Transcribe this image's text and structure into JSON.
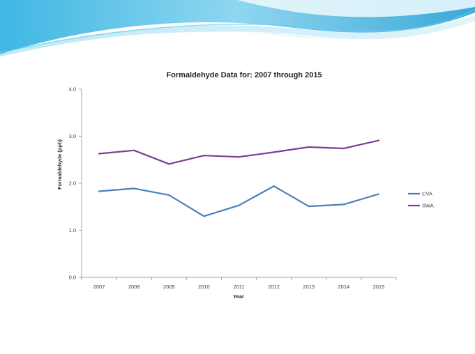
{
  "chart_data": {
    "type": "line",
    "title": "Formaldehyde Data for: 2007 through 2015",
    "xlabel": "Year",
    "ylabel": "Formaldehyde (ppb)",
    "categories": [
      "2007",
      "2008",
      "2009",
      "2010",
      "2011",
      "2012",
      "2013",
      "2014",
      "2015"
    ],
    "ylim": [
      0,
      4
    ],
    "yticks": [
      "0.0",
      "1.0",
      "2.0",
      "3.0",
      "4.0"
    ],
    "grid": false,
    "legend_position": "right",
    "series": [
      {
        "name": "CVA",
        "color": "#4a7ebb",
        "values": [
          1.83,
          1.89,
          1.75,
          1.3,
          1.53,
          1.94,
          1.51,
          1.55,
          1.77
        ]
      },
      {
        "name": "SWA",
        "color": "#7d3c98",
        "values": [
          2.63,
          2.7,
          2.41,
          2.59,
          2.56,
          2.66,
          2.77,
          2.74,
          2.91
        ]
      }
    ]
  }
}
